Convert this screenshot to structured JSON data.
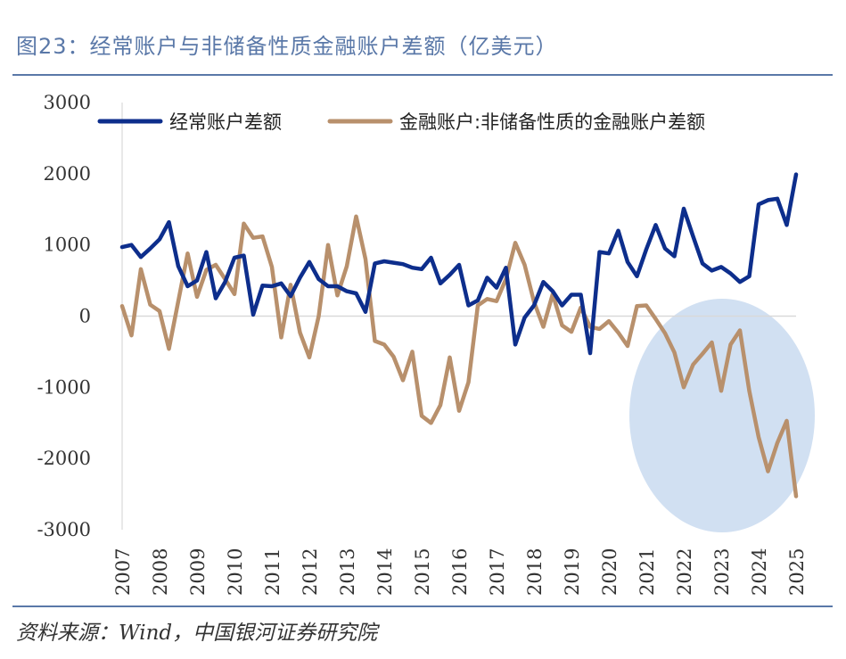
{
  "title": "图23：经常账户与非储备性质金融账户差额（亿美元）",
  "source": "资料来源：Wind，中国银河证券研究院",
  "colors": {
    "accent": "#5a78a8",
    "current_account": "#0d2e8c",
    "financial_account": "#b8906c",
    "highlight": "#c9daf0"
  },
  "chart_data": {
    "type": "line",
    "title": "经常账户与非储备性质金融账户差额（亿美元）",
    "xlabel": "",
    "ylabel": "亿美元",
    "ylim": [
      -3000,
      3000
    ],
    "yticks": [
      "3000",
      "2000",
      "1000",
      "0",
      "-1000",
      "-2000",
      "-3000"
    ],
    "xticks": [
      "2007",
      "2008",
      "2009",
      "2010",
      "2011",
      "2012",
      "2013",
      "2014",
      "2015",
      "2016",
      "2017",
      "2018",
      "2019",
      "2020",
      "2021",
      "2022",
      "2023",
      "2024",
      "2025"
    ],
    "x_start": 2007.0,
    "x_step": 0.25,
    "legend": [
      "经常账户差额",
      "金融账户:非储备性质的金融账户差额"
    ],
    "series": [
      {
        "name": "经常账户差额",
        "values": [
          970,
          1000,
          830,
          950,
          1080,
          1320,
          700,
          420,
          500,
          900,
          250,
          480,
          820,
          850,
          20,
          430,
          420,
          460,
          280,
          540,
          760,
          520,
          420,
          420,
          350,
          320,
          60,
          740,
          770,
          750,
          730,
          680,
          660,
          820,
          460,
          580,
          720,
          150,
          220,
          540,
          400,
          680,
          -400,
          -20,
          150,
          480,
          350,
          150,
          300,
          300,
          -520,
          900,
          880,
          1200,
          760,
          560,
          940,
          1280,
          950,
          840,
          1510,
          1120,
          740,
          640,
          690,
          600,
          480,
          560,
          1570,
          1630,
          1650,
          1280,
          1990
        ]
      },
      {
        "name": "金融账户:非储备性质的金融账户差额",
        "values": [
          140,
          -270,
          660,
          160,
          70,
          -460,
          210,
          880,
          270,
          650,
          720,
          520,
          310,
          1300,
          1100,
          1120,
          690,
          -300,
          440,
          -230,
          -580,
          0,
          1000,
          290,
          700,
          1400,
          800,
          -350,
          -400,
          -570,
          -900,
          -500,
          -1400,
          -1500,
          -1250,
          -580,
          -1330,
          -930,
          150,
          240,
          210,
          520,
          1030,
          720,
          200,
          -150,
          310,
          -130,
          -220,
          120,
          -150,
          -180,
          -70,
          -230,
          -420,
          140,
          150,
          -40,
          -240,
          -510,
          -1000,
          -680,
          -530,
          -370,
          -1050,
          -400,
          -200,
          -1050,
          -1700,
          -2180,
          -1780,
          -1470,
          -2530
        ]
      }
    ],
    "annotations": [
      "highlight ellipse over 2021Q4–2025"
    ]
  }
}
